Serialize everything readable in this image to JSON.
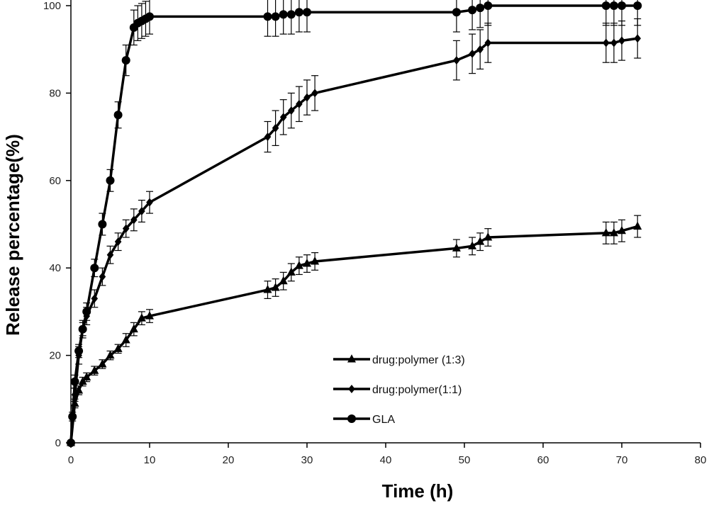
{
  "chart_data": {
    "type": "line",
    "title": "",
    "xlabel": "Time (h)",
    "ylabel": "Release percentage(%)",
    "xlim": [
      0,
      80
    ],
    "ylim": [
      0,
      100
    ],
    "xticks": [
      0,
      10,
      20,
      30,
      40,
      50,
      60,
      70,
      80
    ],
    "yticks": [
      0,
      20,
      40,
      60,
      80,
      100
    ],
    "grid": false,
    "legend_position": "bottom-center",
    "series": [
      {
        "name": "drug:polymer (1:3)",
        "marker": "triangle",
        "color": "#000000",
        "x": [
          0,
          0.5,
          1,
          1.5,
          2,
          3,
          4,
          5,
          6,
          7,
          8,
          9,
          10,
          25,
          26,
          27,
          28,
          29,
          30,
          31,
          49,
          51,
          52,
          53,
          68,
          69,
          70,
          72
        ],
        "y": [
          0,
          9,
          12,
          14,
          15,
          16.5,
          18,
          20,
          21.5,
          23.5,
          26,
          28.5,
          29,
          35,
          35.5,
          37,
          39,
          40.5,
          41,
          41.5,
          44.5,
          45,
          46,
          47,
          48,
          48,
          48.5,
          49.5
        ],
        "error": [
          0,
          1,
          1,
          1,
          1,
          1,
          1,
          1,
          1,
          1.5,
          1.5,
          1.5,
          1.5,
          2,
          2,
          2,
          2,
          2,
          2,
          2,
          2,
          2,
          2,
          2,
          2.5,
          2.5,
          2.5,
          2.5
        ]
      },
      {
        "name": "drug:polymer(1:1)",
        "marker": "diamond",
        "color": "#000000",
        "x": [
          0,
          0.5,
          1,
          1.5,
          2,
          3,
          4,
          5,
          6,
          7,
          8,
          9,
          10,
          25,
          26,
          27,
          28,
          29,
          30,
          31,
          49,
          51,
          52,
          53,
          68,
          69,
          70,
          72
        ],
        "y": [
          0,
          11,
          20,
          26,
          29,
          33,
          38,
          43,
          46,
          49,
          51,
          53,
          55,
          70,
          72,
          74.5,
          76,
          77.5,
          79,
          80,
          87.5,
          89,
          90,
          91.5,
          91.5,
          91.5,
          92,
          92.5
        ],
        "error": [
          0,
          1.5,
          2,
          2,
          2,
          2,
          2,
          2,
          2,
          2,
          2.5,
          2.5,
          2.5,
          3.5,
          4,
          4,
          4,
          4,
          4,
          4,
          4.5,
          4.5,
          4.5,
          4.5,
          4.5,
          4.5,
          4.5,
          4.5
        ]
      },
      {
        "name": "GLA",
        "marker": "circle",
        "color": "#000000",
        "x": [
          0,
          0.2,
          0.5,
          1,
          1.5,
          2,
          3,
          4,
          5,
          6,
          7,
          8,
          8.5,
          9,
          9.5,
          10,
          25,
          26,
          27,
          28,
          29,
          30,
          49,
          51,
          52,
          53,
          68,
          69,
          70,
          72
        ],
        "y": [
          0,
          6,
          14,
          21,
          26,
          30,
          40,
          50,
          60,
          75,
          87.5,
          95,
          96,
          96.5,
          97,
          97.5,
          97.5,
          97.5,
          98,
          98,
          98.5,
          98.5,
          98.5,
          99,
          99.5,
          100,
          100,
          100,
          100,
          100
        ],
        "error": [
          0,
          1,
          1.5,
          1.5,
          1.5,
          2,
          2,
          2.5,
          2.5,
          3,
          3.5,
          4,
          4,
          4,
          4,
          4,
          4.5,
          4.5,
          4.5,
          4.5,
          4.5,
          4.5,
          4.5,
          4.5,
          4.5,
          4.5,
          4.5,
          4.5,
          4.5,
          4.5
        ]
      }
    ]
  }
}
